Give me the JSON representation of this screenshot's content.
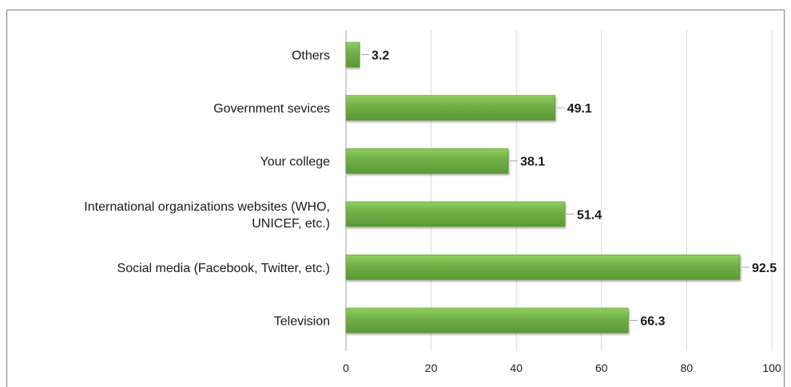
{
  "chart_data": {
    "type": "bar",
    "orientation": "horizontal",
    "categories": [
      [
        "Others"
      ],
      [
        "Government sevices"
      ],
      [
        "Your college"
      ],
      [
        "International organizations websites (WHO,",
        "UNICEF, etc.)"
      ],
      [
        "Social media (Facebook, Twitter, etc.)"
      ],
      [
        "Television"
      ]
    ],
    "values": [
      3.2,
      49.1,
      38.1,
      51.4,
      92.5,
      66.3
    ],
    "xlim": [
      0,
      100
    ],
    "xticks": [
      0,
      20,
      40,
      60,
      80,
      100
    ],
    "grid": true,
    "bar_color": "#70ad47",
    "bar_color_light": "#8fcf5e",
    "bar_color_dark": "#5a9a32",
    "title": "",
    "xlabel": "",
    "ylabel": ""
  }
}
